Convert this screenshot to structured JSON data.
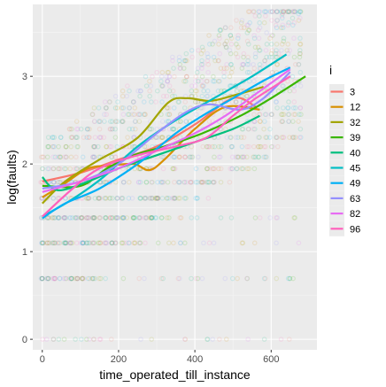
{
  "chart_data": {
    "type": "scatter",
    "xlabel": "time_operated_till_instance",
    "ylabel": "log(faults)",
    "xlim": [
      -25,
      720
    ],
    "ylim": [
      -0.12,
      3.82
    ],
    "x_ticks": [
      0,
      200,
      400,
      600
    ],
    "y_ticks": [
      0,
      1,
      2,
      3
    ],
    "x_tick_labels": [
      "0",
      "200",
      "400",
      "600"
    ],
    "y_tick_labels": [
      "0",
      "1",
      "2",
      "3"
    ],
    "grid": true,
    "panel_background": "#ebebeb",
    "legend": {
      "title": "i",
      "position": "right"
    },
    "series": [
      {
        "name": "3",
        "color": "#F8766D",
        "smooth": [
          [
            0,
            1.8
          ],
          [
            100,
            1.9
          ],
          [
            200,
            2.05
          ],
          [
            300,
            2.2
          ],
          [
            400,
            2.45
          ],
          [
            500,
            2.75
          ],
          [
            560,
            2.65
          ]
        ]
      },
      {
        "name": "12",
        "color": "#D89000",
        "smooth": [
          [
            0,
            1.62
          ],
          [
            60,
            1.78
          ],
          [
            120,
            1.95
          ],
          [
            180,
            1.98
          ],
          [
            240,
            2.0
          ],
          [
            280,
            1.93
          ],
          [
            320,
            2.05
          ],
          [
            400,
            2.4
          ],
          [
            480,
            2.65
          ],
          [
            570,
            2.62
          ]
        ]
      },
      {
        "name": "32",
        "color": "#A3A500",
        "smooth": [
          [
            0,
            1.55
          ],
          [
            60,
            1.8
          ],
          [
            150,
            2.05
          ],
          [
            250,
            2.3
          ],
          [
            330,
            2.7
          ],
          [
            380,
            2.75
          ],
          [
            440,
            2.72
          ],
          [
            500,
            2.78
          ],
          [
            580,
            2.88
          ]
        ]
      },
      {
        "name": "39",
        "color": "#39B600",
        "smooth": [
          [
            0,
            1.75
          ],
          [
            100,
            1.75
          ],
          [
            170,
            1.95
          ],
          [
            240,
            2.1
          ],
          [
            320,
            2.2
          ],
          [
            420,
            2.35
          ],
          [
            520,
            2.55
          ],
          [
            600,
            2.75
          ],
          [
            690,
            3.0
          ]
        ]
      },
      {
        "name": "40",
        "color": "#00BF7D",
        "smooth": [
          [
            0,
            1.85
          ],
          [
            40,
            1.7
          ],
          [
            120,
            1.8
          ],
          [
            200,
            1.95
          ],
          [
            300,
            2.1
          ],
          [
            400,
            2.25
          ],
          [
            500,
            2.4
          ],
          [
            570,
            2.55
          ]
        ]
      },
      {
        "name": "45",
        "color": "#00BFC4",
        "smooth": [
          [
            0,
            1.4
          ],
          [
            80,
            1.6
          ],
          [
            160,
            1.85
          ],
          [
            250,
            2.2
          ],
          [
            350,
            2.5
          ],
          [
            450,
            2.75
          ],
          [
            550,
            3.0
          ],
          [
            640,
            3.25
          ]
        ]
      },
      {
        "name": "49",
        "color": "#00B0F6",
        "smooth": [
          [
            0,
            1.38
          ],
          [
            60,
            1.55
          ],
          [
            150,
            1.72
          ],
          [
            250,
            2.0
          ],
          [
            350,
            2.35
          ],
          [
            420,
            2.55
          ],
          [
            500,
            2.75
          ],
          [
            580,
            2.95
          ],
          [
            650,
            3.1
          ]
        ]
      },
      {
        "name": "63",
        "color": "#9590FF",
        "smooth": [
          [
            0,
            1.72
          ],
          [
            100,
            1.8
          ],
          [
            200,
            2.0
          ],
          [
            300,
            2.35
          ],
          [
            380,
            2.6
          ],
          [
            440,
            2.68
          ],
          [
            520,
            2.62
          ],
          [
            580,
            2.75
          ],
          [
            650,
            3.05
          ]
        ]
      },
      {
        "name": "82",
        "color": "#E76BF3",
        "smooth": [
          [
            0,
            1.68
          ],
          [
            100,
            1.8
          ],
          [
            200,
            1.95
          ],
          [
            300,
            2.15
          ],
          [
            400,
            2.35
          ],
          [
            480,
            2.55
          ],
          [
            560,
            2.8
          ],
          [
            650,
            3.08
          ]
        ]
      },
      {
        "name": "96",
        "color": "#FF62BC",
        "smooth": [
          [
            0,
            1.4
          ],
          [
            80,
            1.72
          ],
          [
            150,
            1.95
          ],
          [
            250,
            2.1
          ],
          [
            350,
            2.2
          ],
          [
            430,
            2.3
          ],
          [
            500,
            2.55
          ],
          [
            560,
            2.75
          ],
          [
            650,
            3.0
          ]
        ]
      }
    ],
    "point_x_levels": [
      0,
      15,
      30,
      45,
      60,
      75,
      90,
      105,
      120,
      135,
      150,
      165,
      180,
      195,
      210,
      225,
      240,
      255,
      270,
      285,
      300,
      315,
      330,
      345,
      360,
      375,
      390,
      405,
      420,
      435,
      450,
      465,
      480,
      495,
      510,
      525,
      540,
      555,
      570,
      585,
      600,
      615,
      630,
      645,
      660,
      675
    ],
    "point_y_levels": [
      0,
      0.693,
      1.099,
      1.386,
      1.609,
      1.792,
      1.946,
      2.079,
      2.197,
      2.303,
      2.398,
      2.485,
      2.565,
      2.639,
      2.708,
      2.773,
      2.833,
      2.89,
      2.944,
      2.996,
      3.045,
      3.091,
      3.135,
      3.178,
      3.219,
      3.258,
      3.296,
      3.332,
      3.367,
      3.401,
      3.434,
      3.466,
      3.497,
      3.526,
      3.555,
      3.584,
      3.611,
      3.638,
      3.664,
      3.689,
      3.714,
      3.738
    ],
    "point_alpha": 0.15
  }
}
